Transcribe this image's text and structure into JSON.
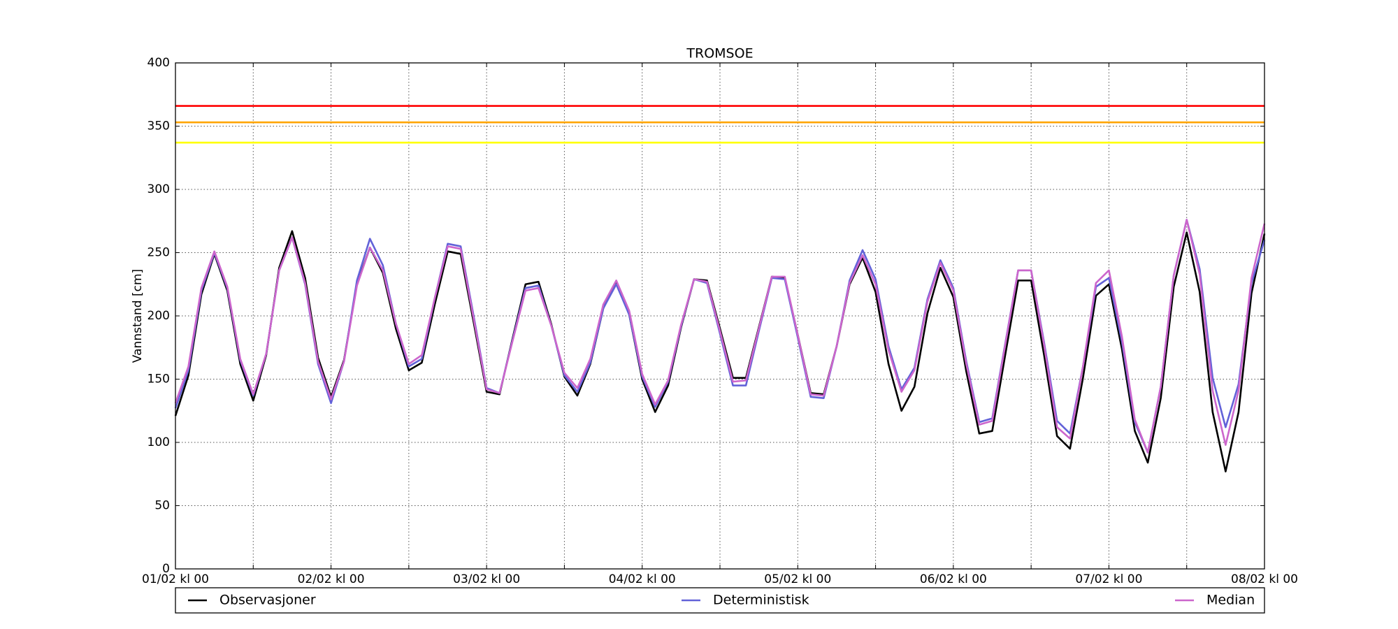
{
  "chart_data": {
    "type": "line",
    "title": "TROMSOE",
    "y_label": "Vannstand [cm]",
    "x": [
      0,
      2,
      4,
      6,
      8,
      10,
      12,
      14,
      16,
      18,
      20,
      22,
      24,
      26,
      28,
      30,
      32,
      34,
      36,
      38,
      40,
      42,
      44,
      46,
      48,
      50,
      52,
      54,
      56,
      58,
      60,
      62,
      64,
      66,
      68,
      70,
      72,
      74,
      76,
      78,
      80,
      82,
      84,
      86,
      88,
      90,
      92,
      94,
      96,
      98,
      100,
      102,
      104,
      106,
      108,
      110,
      112,
      114,
      116,
      118,
      120,
      122,
      124,
      126,
      128,
      130,
      132,
      134,
      136,
      138,
      140,
      142,
      144,
      146,
      148,
      150,
      152,
      154,
      156,
      158,
      160,
      162,
      164,
      166,
      168
    ],
    "series": [
      {
        "name": "Observasjoner",
        "color": "#000000",
        "values": [
          121,
          153,
          217,
          249,
          220,
          162,
          133,
          169,
          238,
          267,
          230,
          167,
          136,
          165,
          225,
          254,
          234,
          190,
          157,
          163,
          209,
          251,
          249,
          195,
          140,
          138,
          182,
          225,
          227,
          193,
          152,
          137,
          162,
          206,
          227,
          201,
          150,
          124,
          145,
          191,
          229,
          228,
          190,
          151,
          151,
          191,
          231,
          230,
          185,
          139,
          138,
          176,
          225,
          246,
          219,
          162,
          125,
          144,
          202,
          238,
          215,
          156,
          107,
          109,
          169,
          228,
          228,
          169,
          105,
          95,
          151,
          216,
          225,
          174,
          109,
          84,
          135,
          223,
          266,
          219,
          124,
          77,
          124,
          218,
          265
        ]
      },
      {
        "name": "Deterministisk",
        "color": "#6262d8",
        "values": [
          127,
          157,
          220,
          250,
          222,
          165,
          137,
          170,
          236,
          262,
          225,
          162,
          131,
          164,
          228,
          261,
          240,
          194,
          160,
          166,
          214,
          257,
          255,
          200,
          143,
          139,
          181,
          222,
          224,
          192,
          153,
          140,
          163,
          206,
          225,
          201,
          152,
          128,
          148,
          192,
          229,
          226,
          186,
          145,
          145,
          188,
          230,
          229,
          183,
          136,
          135,
          176,
          228,
          252,
          229,
          176,
          142,
          159,
          213,
          244,
          222,
          164,
          116,
          119,
          178,
          236,
          236,
          179,
          117,
          107,
          160,
          223,
          230,
          180,
          116,
          92,
          144,
          232,
          276,
          237,
          151,
          112,
          146,
          226,
          260
        ]
      },
      {
        "name": "Median",
        "color": "#cc66cc",
        "values": [
          131,
          160,
          222,
          251,
          223,
          166,
          138,
          170,
          236,
          262,
          226,
          164,
          134,
          164,
          224,
          254,
          236,
          194,
          162,
          169,
          214,
          255,
          253,
          198,
          142,
          139,
          180,
          220,
          222,
          192,
          155,
          143,
          166,
          209,
          228,
          204,
          154,
          130,
          149,
          193,
          229,
          227,
          188,
          148,
          149,
          190,
          231,
          231,
          185,
          138,
          137,
          176,
          226,
          248,
          225,
          173,
          140,
          157,
          211,
          242,
          220,
          162,
          114,
          117,
          177,
          236,
          236,
          177,
          112,
          103,
          160,
          226,
          236,
          184,
          118,
          92,
          144,
          232,
          276,
          233,
          141,
          98,
          141,
          230,
          273
        ]
      }
    ],
    "reference_lines": [
      {
        "value": 366,
        "color": "#ff0000"
      },
      {
        "value": 353,
        "color": "#ffa500"
      },
      {
        "value": 337,
        "color": "#ffff00"
      }
    ],
    "xlim": [
      0,
      168
    ],
    "xticks": [
      {
        "value": 0,
        "label": "01/02 kl 00"
      },
      {
        "value": 12,
        "label": null
      },
      {
        "value": 24,
        "label": "02/02 kl 00"
      },
      {
        "value": 36,
        "label": null
      },
      {
        "value": 48,
        "label": "03/02 kl 00"
      },
      {
        "value": 60,
        "label": null
      },
      {
        "value": 72,
        "label": "04/02 kl 00"
      },
      {
        "value": 84,
        "label": null
      },
      {
        "value": 96,
        "label": "05/02 kl 00"
      },
      {
        "value": 108,
        "label": null
      },
      {
        "value": 120,
        "label": "06/02 kl 00"
      },
      {
        "value": 132,
        "label": null
      },
      {
        "value": 144,
        "label": "07/02 kl 00"
      },
      {
        "value": 156,
        "label": null
      },
      {
        "value": 168,
        "label": "08/02 kl 00"
      }
    ],
    "ylim": [
      0,
      400
    ],
    "yticks": [
      0,
      50,
      100,
      150,
      200,
      250,
      300,
      350,
      400
    ],
    "grid": true,
    "legend": "bottom"
  }
}
